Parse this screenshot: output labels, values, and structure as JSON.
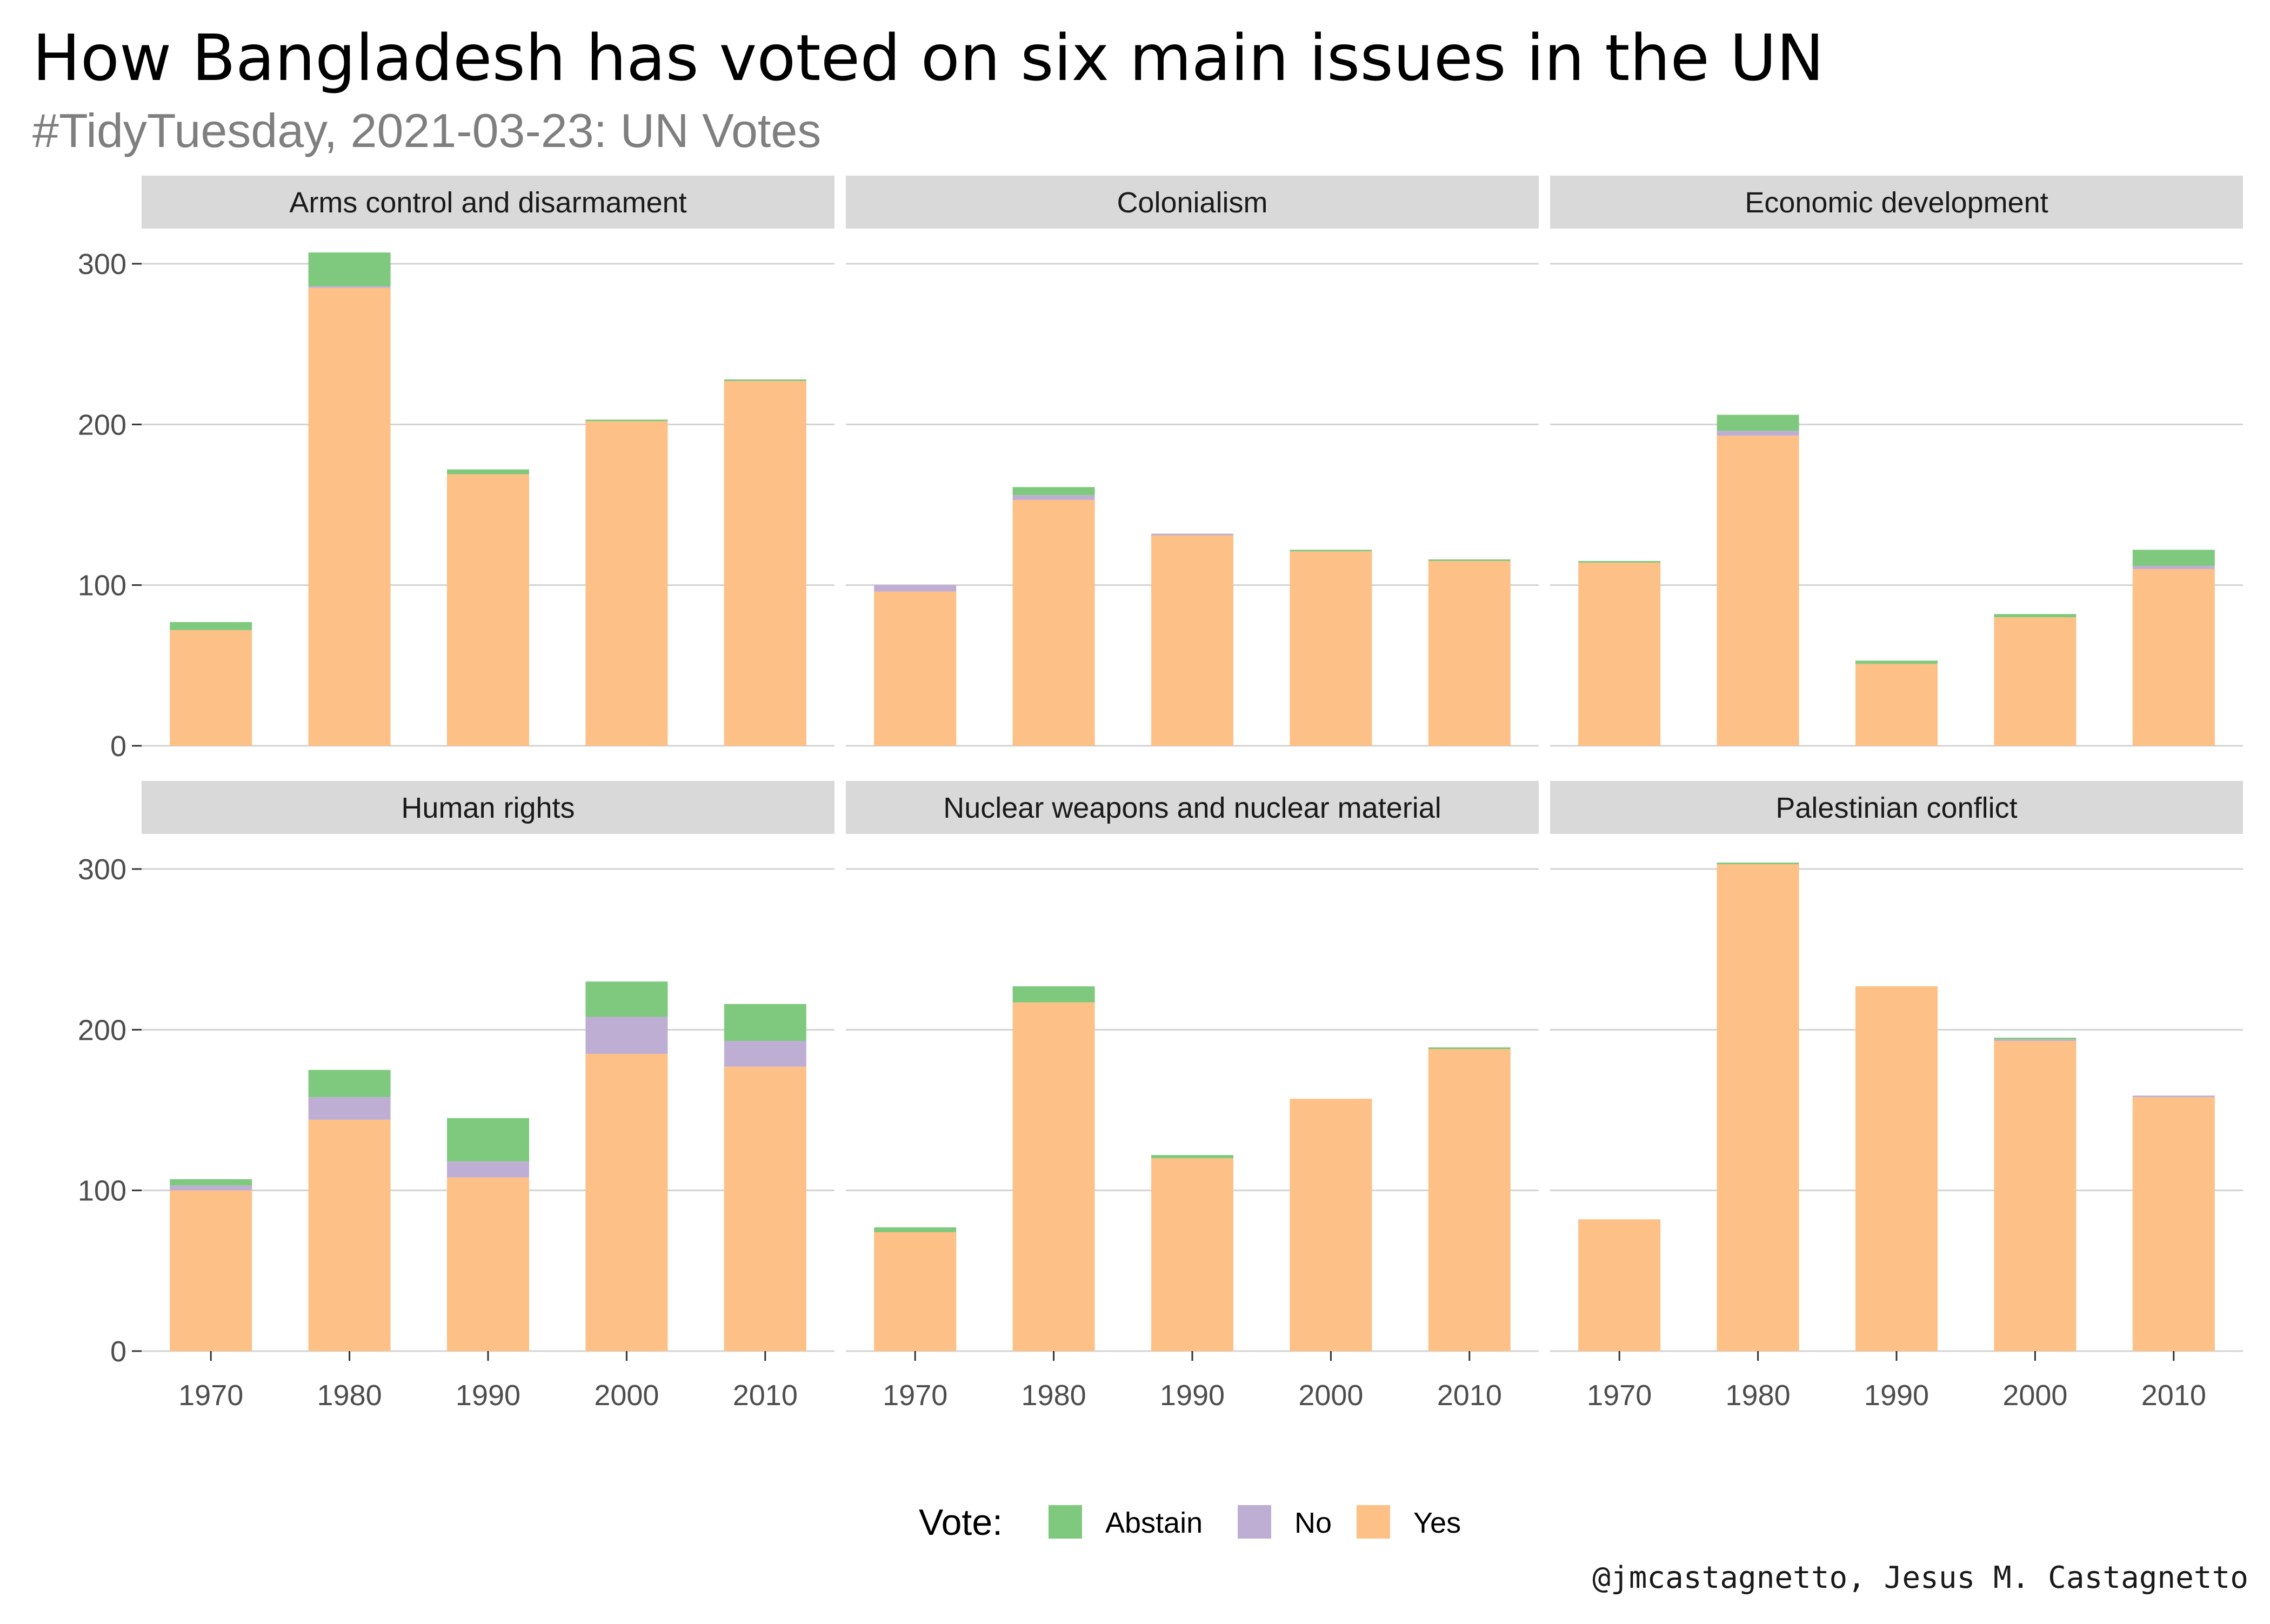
{
  "title": "How Bangladesh has voted on six main issues in the UN",
  "subtitle": "#TidyTuesday, 2021-03-23: UN Votes",
  "caption": "@jmcastagnetto, Jesus M. Castagnetto",
  "legend": {
    "title": "Vote:",
    "items": [
      {
        "label": "Abstain",
        "color": "#7fc97f"
      },
      {
        "label": "No",
        "color": "#beaed4"
      },
      {
        "label": "Yes",
        "color": "#fdc086"
      }
    ]
  },
  "chart_data": {
    "type": "bar",
    "stacked": true,
    "facets": true,
    "categories": [
      "1970",
      "1980",
      "1990",
      "2000",
      "2010"
    ],
    "y_ticks": [
      "0",
      "100",
      "200",
      "300"
    ],
    "ylim": [
      0,
      330
    ],
    "grid": true,
    "legend_position": "bottom",
    "series_names": [
      "Yes",
      "No",
      "Abstain"
    ],
    "series_colors": {
      "Yes": "#fdc086",
      "No": "#beaed4",
      "Abstain": "#7fc97f"
    },
    "panels": [
      {
        "name": "Arms control and disarmament",
        "series": [
          {
            "name": "Yes",
            "values": [
              72,
              285,
              169,
              202,
              227
            ]
          },
          {
            "name": "No",
            "values": [
              0,
              1,
              0,
              0,
              0
            ]
          },
          {
            "name": "Abstain",
            "values": [
              5,
              21,
              3,
              1,
              1
            ]
          }
        ]
      },
      {
        "name": "Colonialism",
        "series": [
          {
            "name": "Yes",
            "values": [
              96,
              153,
              131,
              121,
              115
            ]
          },
          {
            "name": "No",
            "values": [
              4,
              3,
              1,
              0,
              0
            ]
          },
          {
            "name": "Abstain",
            "values": [
              0,
              5,
              0,
              1,
              1
            ]
          }
        ]
      },
      {
        "name": "Economic development",
        "series": [
          {
            "name": "Yes",
            "values": [
              114,
              193,
              51,
              80,
              110
            ]
          },
          {
            "name": "No",
            "values": [
              0,
              3,
              0,
              0,
              2
            ]
          },
          {
            "name": "Abstain",
            "values": [
              1,
              10,
              2,
              2,
              10
            ]
          }
        ]
      },
      {
        "name": "Human rights",
        "series": [
          {
            "name": "Yes",
            "values": [
              100,
              144,
              108,
              185,
              177
            ]
          },
          {
            "name": "No",
            "values": [
              3,
              14,
              10,
              23,
              16
            ]
          },
          {
            "name": "Abstain",
            "values": [
              4,
              17,
              27,
              22,
              23
            ]
          }
        ]
      },
      {
        "name": "Nuclear weapons and nuclear material",
        "series": [
          {
            "name": "Yes",
            "values": [
              74,
              217,
              120,
              157,
              188
            ]
          },
          {
            "name": "No",
            "values": [
              0,
              0,
              0,
              0,
              0
            ]
          },
          {
            "name": "Abstain",
            "values": [
              3,
              10,
              2,
              0,
              1
            ]
          }
        ]
      },
      {
        "name": "Palestinian conflict",
        "series": [
          {
            "name": "Yes",
            "values": [
              82,
              303,
              227,
              193,
              158
            ]
          },
          {
            "name": "No",
            "values": [
              0,
              0,
              0,
              1,
              1
            ]
          },
          {
            "name": "Abstain",
            "values": [
              0,
              1,
              0,
              1,
              0
            ]
          }
        ]
      }
    ]
  }
}
